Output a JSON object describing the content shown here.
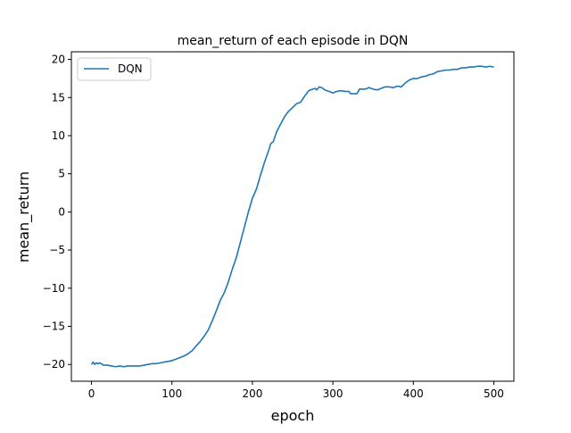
{
  "chart_data": {
    "type": "line",
    "title": "mean_return of each episode in DQN",
    "xlabel": "epoch",
    "ylabel": "mean_return",
    "xlim": [
      -25,
      525
    ],
    "ylim": [
      -22.2,
      21.0
    ],
    "xticks": [
      0,
      100,
      200,
      300,
      400,
      500
    ],
    "yticks": [
      -20,
      -15,
      -10,
      -5,
      0,
      5,
      10,
      15,
      20
    ],
    "grid": false,
    "legend_position": "top-left",
    "series": [
      {
        "name": "DQN",
        "color": "#1f77b4",
        "points": [
          [
            0,
            -20.0
          ],
          [
            2,
            -19.7
          ],
          [
            4,
            -20.0
          ],
          [
            6,
            -19.8
          ],
          [
            8,
            -19.9
          ],
          [
            10,
            -19.8
          ],
          [
            12,
            -19.9
          ],
          [
            15,
            -20.1
          ],
          [
            20,
            -20.1
          ],
          [
            25,
            -20.2
          ],
          [
            30,
            -20.3
          ],
          [
            35,
            -20.2
          ],
          [
            40,
            -20.3
          ],
          [
            45,
            -20.2
          ],
          [
            50,
            -20.2
          ],
          [
            55,
            -20.2
          ],
          [
            60,
            -20.2
          ],
          [
            65,
            -20.1
          ],
          [
            70,
            -20.0
          ],
          [
            75,
            -19.9
          ],
          [
            80,
            -19.9
          ],
          [
            85,
            -19.8
          ],
          [
            90,
            -19.7
          ],
          [
            95,
            -19.6
          ],
          [
            100,
            -19.5
          ],
          [
            105,
            -19.3
          ],
          [
            110,
            -19.1
          ],
          [
            115,
            -18.9
          ],
          [
            120,
            -18.6
          ],
          [
            125,
            -18.2
          ],
          [
            130,
            -17.6
          ],
          [
            135,
            -17.0
          ],
          [
            140,
            -16.3
          ],
          [
            145,
            -15.5
          ],
          [
            150,
            -14.3
          ],
          [
            155,
            -13.0
          ],
          [
            160,
            -11.6
          ],
          [
            165,
            -10.6
          ],
          [
            170,
            -9.2
          ],
          [
            175,
            -7.5
          ],
          [
            180,
            -6.0
          ],
          [
            185,
            -4.0
          ],
          [
            190,
            -2.0
          ],
          [
            195,
            0.0
          ],
          [
            200,
            1.8
          ],
          [
            205,
            3.0
          ],
          [
            210,
            4.8
          ],
          [
            215,
            6.5
          ],
          [
            220,
            8.0
          ],
          [
            223,
            9.0
          ],
          [
            226,
            9.2
          ],
          [
            230,
            10.5
          ],
          [
            235,
            11.5
          ],
          [
            240,
            12.5
          ],
          [
            245,
            13.2
          ],
          [
            250,
            13.7
          ],
          [
            255,
            14.2
          ],
          [
            260,
            14.4
          ],
          [
            265,
            15.2
          ],
          [
            270,
            15.9
          ],
          [
            275,
            16.1
          ],
          [
            278,
            16.2
          ],
          [
            280,
            16.0
          ],
          [
            283,
            16.4
          ],
          [
            286,
            16.3
          ],
          [
            290,
            16.0
          ],
          [
            295,
            15.8
          ],
          [
            300,
            15.6
          ],
          [
            305,
            15.8
          ],
          [
            310,
            15.9
          ],
          [
            315,
            15.8
          ],
          [
            320,
            15.8
          ],
          [
            322,
            15.5
          ],
          [
            326,
            15.5
          ],
          [
            330,
            15.5
          ],
          [
            333,
            16.1
          ],
          [
            340,
            16.1
          ],
          [
            345,
            16.3
          ],
          [
            350,
            16.1
          ],
          [
            355,
            16.0
          ],
          [
            360,
            16.2
          ],
          [
            365,
            16.4
          ],
          [
            370,
            16.4
          ],
          [
            375,
            16.3
          ],
          [
            380,
            16.5
          ],
          [
            385,
            16.4
          ],
          [
            390,
            16.9
          ],
          [
            395,
            17.3
          ],
          [
            400,
            17.5
          ],
          [
            405,
            17.5
          ],
          [
            410,
            17.7
          ],
          [
            415,
            17.8
          ],
          [
            420,
            18.0
          ],
          [
            425,
            18.1
          ],
          [
            430,
            18.4
          ],
          [
            435,
            18.5
          ],
          [
            440,
            18.6
          ],
          [
            445,
            18.6
          ],
          [
            450,
            18.7
          ],
          [
            455,
            18.7
          ],
          [
            460,
            18.9
          ],
          [
            465,
            18.9
          ],
          [
            470,
            19.0
          ],
          [
            475,
            19.0
          ],
          [
            480,
            19.1
          ],
          [
            485,
            19.1
          ],
          [
            490,
            19.0
          ],
          [
            495,
            19.1
          ],
          [
            500,
            19.0
          ]
        ]
      }
    ]
  }
}
